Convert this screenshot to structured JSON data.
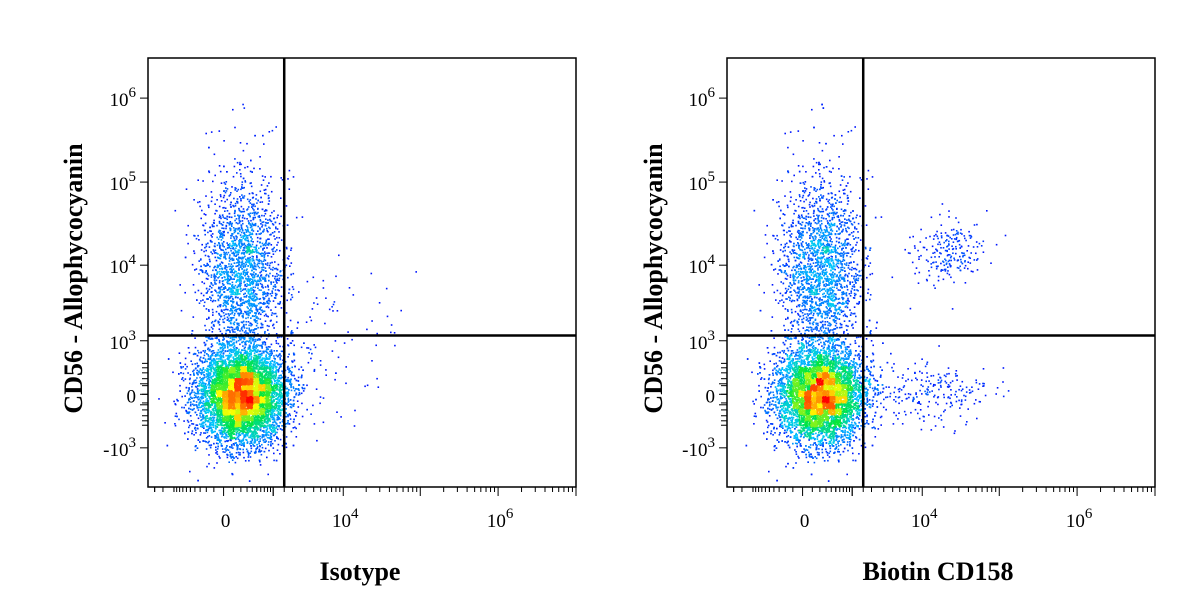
{
  "chart_data": [
    {
      "type": "scatter",
      "style": "density pseudocolor dot plot",
      "xlabel": "Isotype",
      "ylabel": "CD56 - Allophycocyanin",
      "x_scale": "biexponential",
      "y_scale": "biexponential",
      "x_tick_labels": [
        "0",
        "10^4",
        "10^6"
      ],
      "y_tick_labels": [
        "10^6",
        "10^5",
        "10^4",
        "10^3",
        "0",
        "-10^3"
      ],
      "gate": {
        "x": 1500,
        "y": 1200
      },
      "populations": [
        {
          "name": "main",
          "x_center": 200,
          "y_center": 0,
          "fraction": 0.78
        },
        {
          "name": "cd56_positive",
          "x_center": 200,
          "y_center": 8000,
          "fraction": 0.21
        },
        {
          "name": "outliers",
          "x_center": 5000,
          "y_center": 1000,
          "fraction": 0.01
        }
      ]
    },
    {
      "type": "scatter",
      "style": "density pseudocolor dot plot",
      "xlabel": "Biotin CD158",
      "ylabel": "CD56 - Allophycocyanin",
      "x_scale": "biexponential",
      "y_scale": "biexponential",
      "x_tick_labels": [
        "0",
        "10^4",
        "10^6"
      ],
      "y_tick_labels": [
        "10^6",
        "10^5",
        "10^4",
        "10^3",
        "0",
        "-10^3"
      ],
      "gate": {
        "x": 1500,
        "y": 1200
      },
      "populations": [
        {
          "name": "main",
          "x_center": 200,
          "y_center": 0,
          "fraction": 0.74
        },
        {
          "name": "cd56_positive",
          "x_center": 200,
          "y_center": 8000,
          "fraction": 0.22
        },
        {
          "name": "cd158_cd56_positive",
          "x_center": 20000,
          "y_center": 15000,
          "fraction": 0.02
        },
        {
          "name": "cd158_positive_cd56_low",
          "x_center": 15000,
          "y_center": 0,
          "fraction": 0.02
        }
      ]
    }
  ],
  "colors": {
    "density_low": "#0000ff",
    "density_mid_low": "#00c8ff",
    "density_mid": "#00ff00",
    "density_mid_high": "#ffff00",
    "density_high": "#ff0000",
    "axis": "#000000"
  }
}
